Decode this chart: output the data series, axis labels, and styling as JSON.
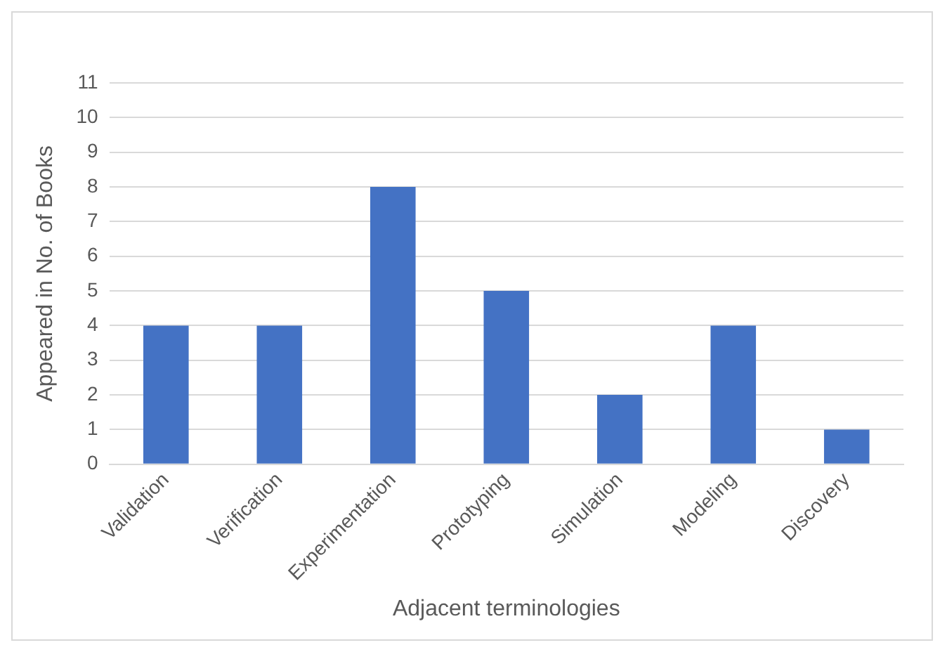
{
  "chart_data": {
    "type": "bar",
    "xlabel": "Adjacent terminologies",
    "ylabel": "Appeared in No. of Books",
    "categories": [
      "Validation",
      "Verification",
      "Experimentation",
      "Prototyping",
      "Simulation",
      "Modeling",
      "Discovery"
    ],
    "values": [
      4,
      4,
      8,
      5,
      2,
      4,
      1
    ],
    "color": "#4472c4",
    "ylim": [
      0,
      11
    ],
    "yticks": [
      0,
      1,
      2,
      3,
      4,
      5,
      6,
      7,
      8,
      9,
      10,
      11
    ],
    "grid": "y",
    "legend": false
  }
}
